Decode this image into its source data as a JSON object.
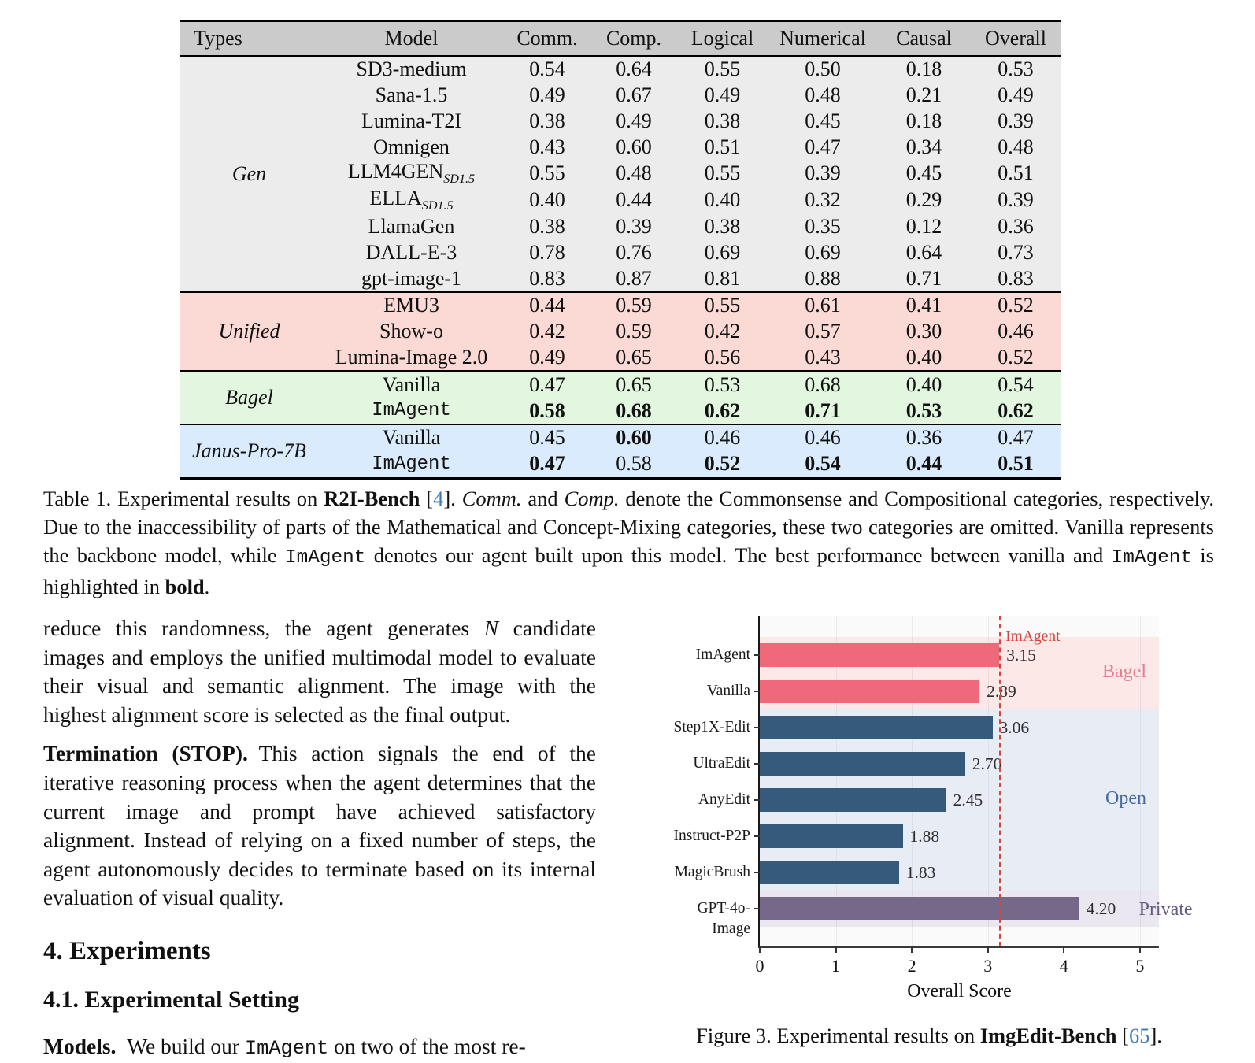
{
  "table": {
    "headers": [
      "Types",
      "Model",
      "Comm.",
      "Comp.",
      "Logical",
      "Numerical",
      "Causal",
      "Overall"
    ],
    "groups": [
      {
        "id": "gen",
        "name": "Gen",
        "rows": [
          {
            "model": "SD3-medium",
            "values": [
              "0.54",
              "0.64",
              "0.55",
              "0.50",
              "0.18",
              "0.53"
            ],
            "bold": [
              0,
              0,
              0,
              0,
              0,
              0
            ]
          },
          {
            "model": "Sana-1.5",
            "values": [
              "0.49",
              "0.67",
              "0.49",
              "0.48",
              "0.21",
              "0.49"
            ],
            "bold": [
              0,
              0,
              0,
              0,
              0,
              0
            ]
          },
          {
            "model": "Lumina-T2I",
            "values": [
              "0.38",
              "0.49",
              "0.38",
              "0.45",
              "0.18",
              "0.39"
            ],
            "bold": [
              0,
              0,
              0,
              0,
              0,
              0
            ]
          },
          {
            "model": "Omnigen",
            "values": [
              "0.43",
              "0.60",
              "0.51",
              "0.47",
              "0.34",
              "0.48"
            ],
            "bold": [
              0,
              0,
              0,
              0,
              0,
              0
            ]
          },
          {
            "model": "LLM4GEN",
            "sub": "SD1.5",
            "values": [
              "0.55",
              "0.48",
              "0.55",
              "0.39",
              "0.45",
              "0.51"
            ],
            "bold": [
              0,
              0,
              0,
              0,
              0,
              0
            ]
          },
          {
            "model": "ELLA",
            "sub": "SD1.5",
            "values": [
              "0.40",
              "0.44",
              "0.40",
              "0.32",
              "0.29",
              "0.39"
            ],
            "bold": [
              0,
              0,
              0,
              0,
              0,
              0
            ]
          },
          {
            "model": "LlamaGen",
            "values": [
              "0.38",
              "0.39",
              "0.38",
              "0.35",
              "0.12",
              "0.36"
            ],
            "bold": [
              0,
              0,
              0,
              0,
              0,
              0
            ]
          },
          {
            "model": "DALL-E-3",
            "values": [
              "0.78",
              "0.76",
              "0.69",
              "0.69",
              "0.64",
              "0.73"
            ],
            "bold": [
              0,
              0,
              0,
              0,
              0,
              0
            ]
          },
          {
            "model": "gpt-image-1",
            "values": [
              "0.83",
              "0.87",
              "0.81",
              "0.88",
              "0.71",
              "0.83"
            ],
            "bold": [
              0,
              0,
              0,
              0,
              0,
              0
            ]
          }
        ]
      },
      {
        "id": "unified",
        "name": "Unified",
        "rows": [
          {
            "model": "EMU3",
            "values": [
              "0.44",
              "0.59",
              "0.55",
              "0.61",
              "0.41",
              "0.52"
            ],
            "bold": [
              0,
              0,
              0,
              0,
              0,
              0
            ]
          },
          {
            "model": "Show-o",
            "values": [
              "0.42",
              "0.59",
              "0.42",
              "0.57",
              "0.30",
              "0.46"
            ],
            "bold": [
              0,
              0,
              0,
              0,
              0,
              0
            ]
          },
          {
            "model": "Lumina-Image 2.0",
            "values": [
              "0.49",
              "0.65",
              "0.56",
              "0.43",
              "0.40",
              "0.52"
            ],
            "bold": [
              0,
              0,
              0,
              0,
              0,
              0
            ]
          }
        ]
      },
      {
        "id": "bagel",
        "name": "Bagel",
        "rows": [
          {
            "model": "Vanilla",
            "values": [
              "0.47",
              "0.65",
              "0.53",
              "0.68",
              "0.40",
              "0.54"
            ],
            "bold": [
              0,
              0,
              0,
              0,
              0,
              0
            ]
          },
          {
            "model": "ImAgent",
            "mono": true,
            "values": [
              "0.58",
              "0.68",
              "0.62",
              "0.71",
              "0.53",
              "0.62"
            ],
            "bold": [
              1,
              1,
              1,
              1,
              1,
              1
            ]
          }
        ]
      },
      {
        "id": "janus",
        "name": "Janus-Pro-7B",
        "rows": [
          {
            "model": "Vanilla",
            "values": [
              "0.45",
              "0.60",
              "0.46",
              "0.46",
              "0.36",
              "0.47"
            ],
            "bold": [
              0,
              1,
              0,
              0,
              0,
              0
            ]
          },
          {
            "model": "ImAgent",
            "mono": true,
            "values": [
              "0.47",
              "0.58",
              "0.52",
              "0.54",
              "0.44",
              "0.51"
            ],
            "bold": [
              1,
              0,
              1,
              1,
              1,
              1
            ]
          }
        ]
      }
    ]
  },
  "table_caption": [
    {
      "t": "Table 1. Experimental results on "
    },
    {
      "t": "R2I-Bench",
      "s": "bold"
    },
    {
      "t": " ["
    },
    {
      "t": "4",
      "s": "link"
    },
    {
      "t": "]. "
    },
    {
      "t": "Comm.",
      "s": "italic"
    },
    {
      "t": " and "
    },
    {
      "t": "Comp.",
      "s": "italic"
    },
    {
      "t": " denote the Commonsense and Compositional categories, respectively. Due to the inaccessibility of parts of the Mathematical and Concept-Mixing categories, these two categories are omitted. Vanilla represents the backbone model, while "
    },
    {
      "t": "ImAgent",
      "s": "mono"
    },
    {
      "t": " denotes our agent built upon this model. The best performance between vanilla and "
    },
    {
      "t": "ImAgent",
      "s": "mono"
    },
    {
      "t": " is highlighted in "
    },
    {
      "t": "bold",
      "s": "bold"
    },
    {
      "t": "."
    }
  ],
  "body": {
    "para1": [
      {
        "t": "reduce this randomness, the agent generates "
      },
      {
        "t": "N",
        "s": "mathit"
      },
      {
        "t": " candidate images and employs the unified multimodal model to evaluate their visual and semantic alignment. The image with the highest alignment score is selected as the final output."
      }
    ],
    "para2": [
      {
        "t": "Termination (STOP).",
        "s": "bold"
      },
      {
        "t": " This action signals the end of the iterative reasoning process when the agent determines that the current image and prompt have achieved satisfactory alignment. Instead of relying on a fixed number of steps, the agent autonomously decides to terminate based on its internal evaluation of visual quality."
      }
    ],
    "heading_section": "4. Experiments",
    "heading_subsection": "4.1. Experimental Setting",
    "para3": [
      {
        "t": "Models.",
        "s": "bold"
      },
      {
        "t": " We build our "
      },
      {
        "t": "ImAgent",
        "s": "mono"
      },
      {
        "t": " on two of the most re-"
      }
    ]
  },
  "figure": {
    "caption": [
      {
        "t": "Figure 3. Experimental results on "
      },
      {
        "t": "ImgEdit-Bench",
        "s": "bold"
      },
      {
        "t": " ["
      },
      {
        "t": "65",
        "s": "link"
      },
      {
        "t": "]."
      }
    ]
  },
  "chart_data": {
    "type": "bar",
    "orientation": "horizontal",
    "xlabel": "Overall Score",
    "xlim": [
      0,
      5.25
    ],
    "xticks": [
      "0",
      "1",
      "2",
      "3",
      "4",
      "5"
    ],
    "grid": true,
    "reference_line": {
      "value": 3.15,
      "label": "ImAgent",
      "color": "#d4453f"
    },
    "groups": [
      {
        "label": "Bagel",
        "start": 0,
        "count": 2,
        "band": "#fbe8e7",
        "label_color": "#e4808d",
        "label_at": "right"
      },
      {
        "label": "Open",
        "start": 2,
        "count": 5,
        "band": "#e8edf5",
        "label_color": "#456a9b",
        "label_at": "right"
      },
      {
        "label": "Private",
        "start": 7,
        "count": 1,
        "band": "#eae7f1",
        "label_color": "#675a82",
        "label_at": "bar-end"
      }
    ],
    "bars": [
      {
        "label": "ImAgent",
        "value": 3.15,
        "display": "3.15",
        "color": "#f0697a"
      },
      {
        "label": "Vanilla",
        "value": 2.89,
        "display": "2.89",
        "color": "#f0697a"
      },
      {
        "label": "Step1X-Edit",
        "value": 3.06,
        "display": "3.06",
        "color": "#365a7c"
      },
      {
        "label": "UltraEdit",
        "value": 2.7,
        "display": "2.70",
        "color": "#365a7c"
      },
      {
        "label": "AnyEdit",
        "value": 2.45,
        "display": "2.45",
        "color": "#365a7c"
      },
      {
        "label": "Instruct-P2P",
        "value": 1.88,
        "display": "1.88",
        "color": "#365a7c"
      },
      {
        "label": "MagicBrush",
        "value": 1.83,
        "display": "1.83",
        "color": "#365a7c"
      },
      {
        "label": "GPT-4o-Image",
        "value": 4.2,
        "display": "4.20",
        "color": "#766889"
      }
    ]
  }
}
